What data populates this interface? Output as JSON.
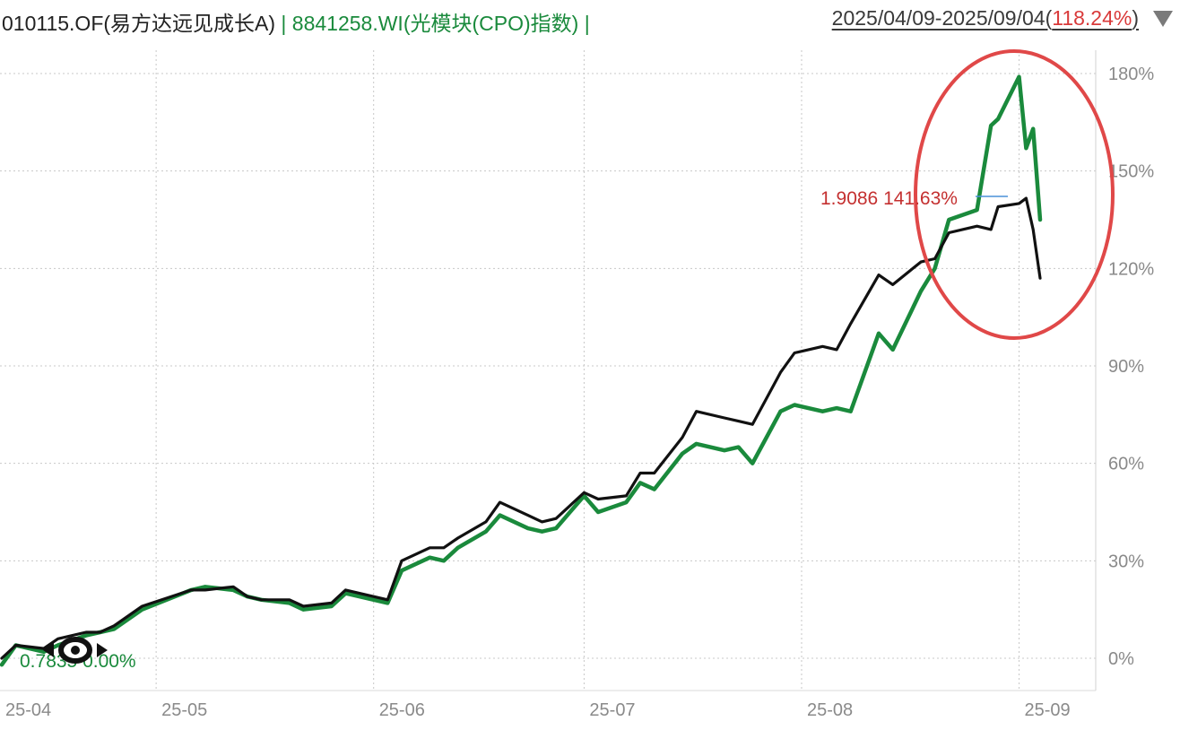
{
  "header": {
    "fund_label": "010115.OF(易方达远见成长A)",
    "separator": "|",
    "index_label": "8841258.WI(光模块(CPO)指数)",
    "date_range": "2025/04/09-2025/09/04",
    "range_return": "118.24%",
    "open_paren": "(",
    "close_paren": ")"
  },
  "annotations": {
    "start_label": "0.7835 0.00%",
    "hover_label": "1.9086 141.63%"
  },
  "colors": {
    "fund": "#111111",
    "index": "#1a8a3c",
    "highlight_circle": "#e04848",
    "annotation": "#c43030",
    "grid": "#c8c8c8"
  },
  "icons": {
    "dropdown": "triangle-down-icon",
    "start_marker": "eye-marker-icon"
  },
  "chart_data": {
    "type": "line",
    "x_ticks": [
      "25-04",
      "25-05",
      "25-06",
      "25-07",
      "25-08",
      "25-09"
    ],
    "y_ticks": [
      "180%",
      "150%",
      "120%",
      "90%",
      "60%",
      "30%",
      "0%"
    ],
    "ylim": [
      -10,
      190
    ],
    "y_unit": "%",
    "grid": true,
    "x_range": [
      "2025-04-09",
      "2025-09-04"
    ],
    "x": [
      "2025-04-09",
      "2025-04-11",
      "2025-04-15",
      "2025-04-17",
      "2025-04-21",
      "2025-04-23",
      "2025-04-25",
      "2025-04-29",
      "2025-05-06",
      "2025-05-08",
      "2025-05-12",
      "2025-05-14",
      "2025-05-16",
      "2025-05-20",
      "2025-05-22",
      "2025-05-26",
      "2025-05-28",
      "2025-06-03",
      "2025-06-05",
      "2025-06-09",
      "2025-06-11",
      "2025-06-13",
      "2025-06-17",
      "2025-06-19",
      "2025-06-23",
      "2025-06-25",
      "2025-06-27",
      "2025-07-01",
      "2025-07-03",
      "2025-07-07",
      "2025-07-09",
      "2025-07-11",
      "2025-07-15",
      "2025-07-17",
      "2025-07-21",
      "2025-07-23",
      "2025-07-25",
      "2025-07-29",
      "2025-07-31",
      "2025-08-04",
      "2025-08-06",
      "2025-08-08",
      "2025-08-12",
      "2025-08-14",
      "2025-08-18",
      "2025-08-20",
      "2025-08-22",
      "2025-08-26",
      "2025-08-28",
      "2025-08-29",
      "2025-09-01",
      "2025-09-02",
      "2025-09-03",
      "2025-09-04"
    ],
    "series": [
      {
        "name": "010115.OF(易方达远见成长A)",
        "values": [
          0,
          4,
          3,
          6,
          8,
          8,
          10,
          16,
          21,
          21,
          22,
          19,
          18,
          18,
          16,
          17,
          21,
          18,
          30,
          34,
          34,
          37,
          42,
          48,
          44,
          42,
          43,
          51,
          49,
          50,
          57,
          57,
          68,
          76,
          74,
          73,
          72,
          88,
          94,
          96,
          95,
          103,
          118,
          115,
          122,
          123,
          131,
          133,
          132,
          139,
          140,
          141.6,
          132,
          117
        ]
      },
      {
        "name": "8841258.WI(光模块(CPO)指数)",
        "values": [
          -2,
          4,
          2,
          4,
          7,
          8,
          9,
          15,
          21,
          22,
          21,
          19,
          18,
          17,
          15,
          16,
          20,
          17,
          27,
          31,
          30,
          34,
          39,
          44,
          40,
          39,
          40,
          50,
          45,
          48,
          54,
          52,
          63,
          66,
          64,
          65,
          60,
          76,
          78,
          76,
          77,
          76,
          100,
          95,
          113,
          120,
          135,
          138,
          164,
          166,
          179,
          157,
          163,
          135
        ]
      }
    ]
  }
}
